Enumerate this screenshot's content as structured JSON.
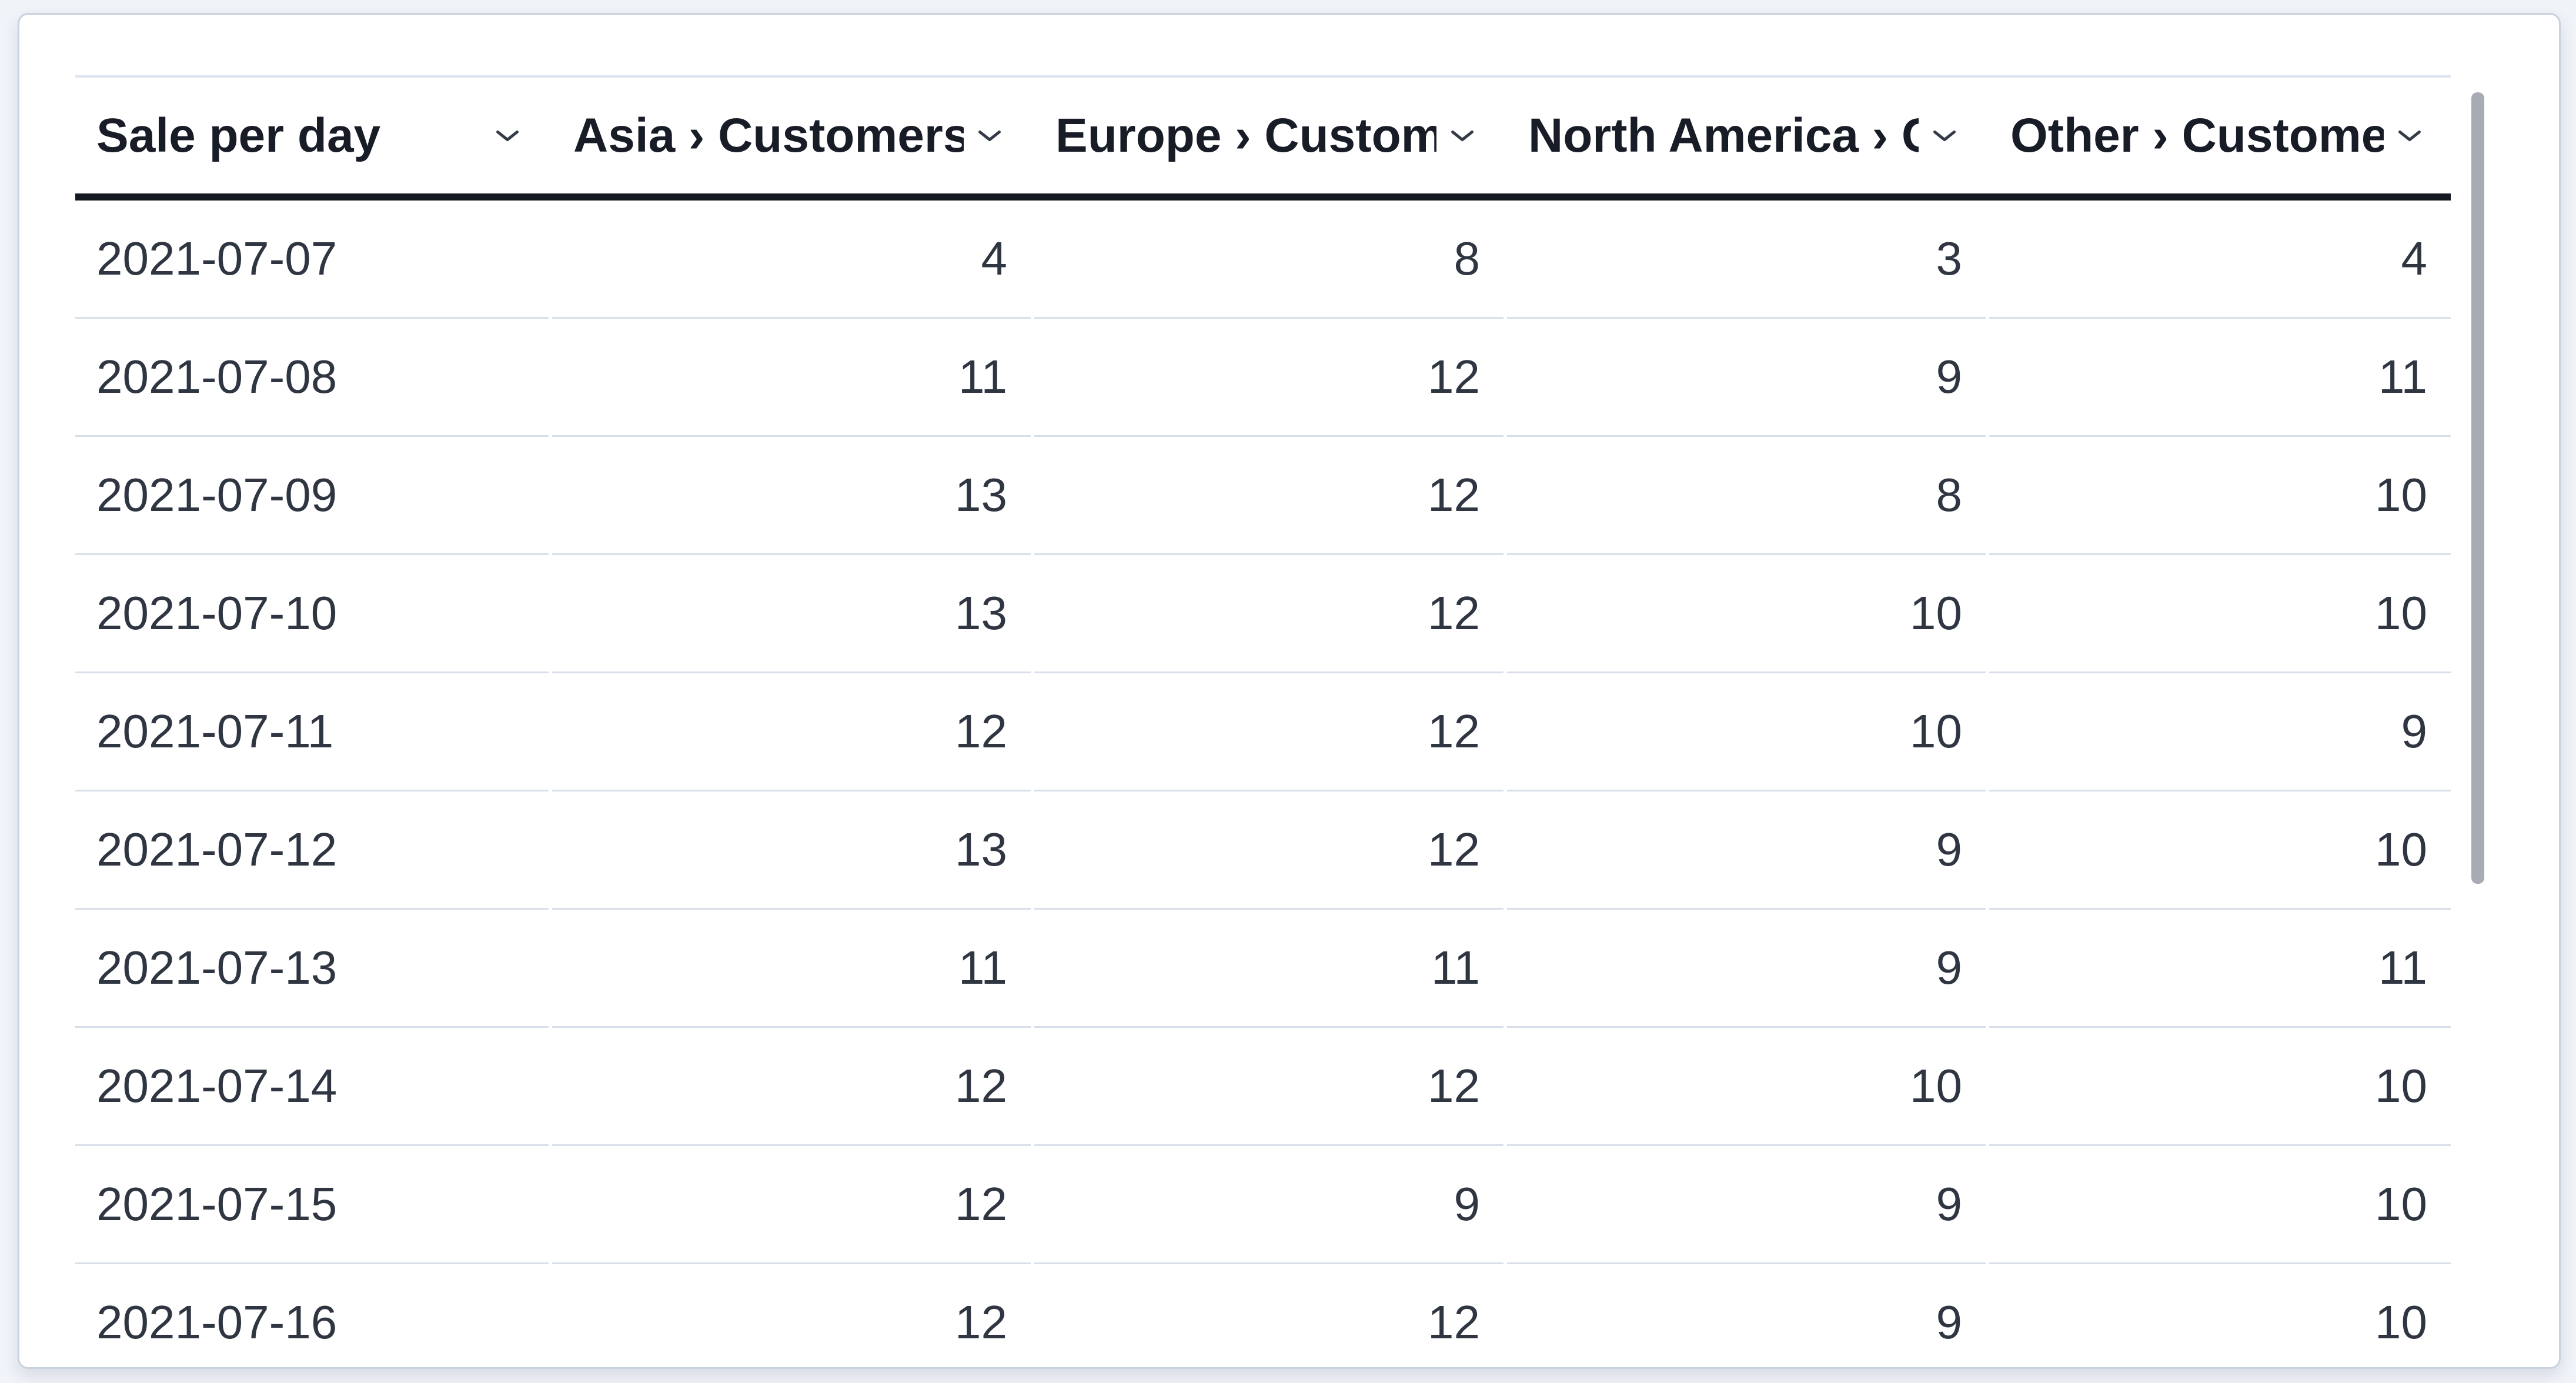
{
  "table": {
    "title": "Sale per day",
    "columns": [
      {
        "label": "Sale per day",
        "align": "left"
      },
      {
        "label": "Asia › Customers",
        "align": "right"
      },
      {
        "label": "Europe › Customers",
        "align": "right"
      },
      {
        "label": "North America › Customers",
        "align": "right"
      },
      {
        "label": "Other › Customers",
        "align": "right"
      }
    ],
    "rows": [
      [
        "2021-07-07",
        4,
        8,
        3,
        4
      ],
      [
        "2021-07-08",
        11,
        12,
        9,
        11
      ],
      [
        "2021-07-09",
        13,
        12,
        8,
        10
      ],
      [
        "2021-07-10",
        13,
        12,
        10,
        10
      ],
      [
        "2021-07-11",
        12,
        12,
        10,
        9
      ],
      [
        "2021-07-12",
        13,
        12,
        9,
        10
      ],
      [
        "2021-07-13",
        11,
        11,
        9,
        11
      ],
      [
        "2021-07-14",
        12,
        12,
        10,
        10
      ],
      [
        "2021-07-15",
        12,
        9,
        9,
        10
      ],
      [
        "2021-07-16",
        12,
        12,
        9,
        10
      ]
    ]
  },
  "icons": {
    "header_sort_icon": "chevron-down-icon"
  },
  "colors": {
    "page_background": "#f0f3f8",
    "card_background": "#ffffff",
    "card_border": "#c9d2e0",
    "header_text": "#171c26",
    "body_text": "#2f3642",
    "header_underline": "#141820",
    "row_divider": "#d8deea",
    "table_top_border": "#dde3ef",
    "scrollbar_thumb": "#a7abb3"
  }
}
